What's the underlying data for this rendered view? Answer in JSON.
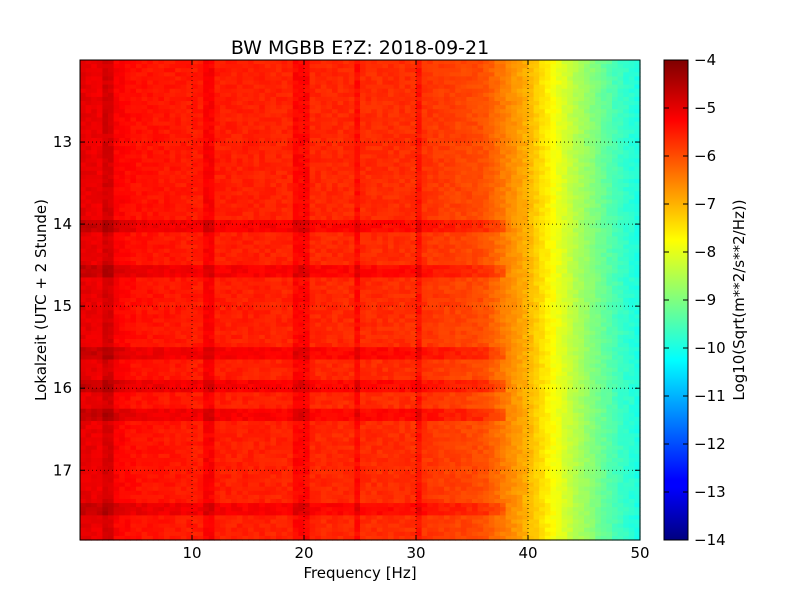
{
  "chart_data": {
    "type": "heatmap",
    "title": "BW MGBB E?Z: 2018-09-21",
    "xlabel": "Frequency [Hz]",
    "ylabel": "Lokalzeit (UTC + 2 Stunde)",
    "xlim": [
      0,
      50
    ],
    "ylim": [
      17.85,
      12.0
    ],
    "y_axis_inverted": true,
    "x_ticks": [
      10,
      20,
      30,
      40,
      50
    ],
    "x_tick_labels": [
      "10",
      "20",
      "30",
      "40",
      "50"
    ],
    "y_ticks": [
      13,
      14,
      15,
      16,
      17
    ],
    "y_tick_labels": [
      "13",
      "14",
      "15",
      "16",
      "17"
    ],
    "grid": true,
    "colormap": "jet",
    "colorbar": {
      "label": "Log10(Sqrt(m**2/s**2/Hz))",
      "min": -14,
      "max": -4,
      "ticks": [
        -4,
        -5,
        -6,
        -7,
        -8,
        -9,
        -10,
        -11,
        -12,
        -13,
        -14
      ],
      "tick_labels": [
        "−4",
        "−5",
        "−6",
        "−7",
        "−8",
        "−9",
        "−10",
        "−11",
        "−12",
        "−13",
        "−14"
      ]
    },
    "spectral_profile": {
      "frequency_hz": [
        0,
        2,
        5,
        10,
        20,
        30,
        36,
        38,
        40,
        42,
        44,
        46,
        48,
        50
      ],
      "level": [
        -5.0,
        -5.1,
        -5.4,
        -5.5,
        -5.6,
        -5.7,
        -6.0,
        -6.5,
        -7.0,
        -7.7,
        -8.4,
        -9.0,
        -9.6,
        -10.0
      ]
    },
    "vertical_features_hz": [
      2.6,
      11.5,
      19.3,
      20.0,
      24.8,
      30.3
    ],
    "horizontal_features_hours": [
      14.0,
      14.55,
      15.55,
      15.95,
      16.3,
      17.45
    ]
  }
}
